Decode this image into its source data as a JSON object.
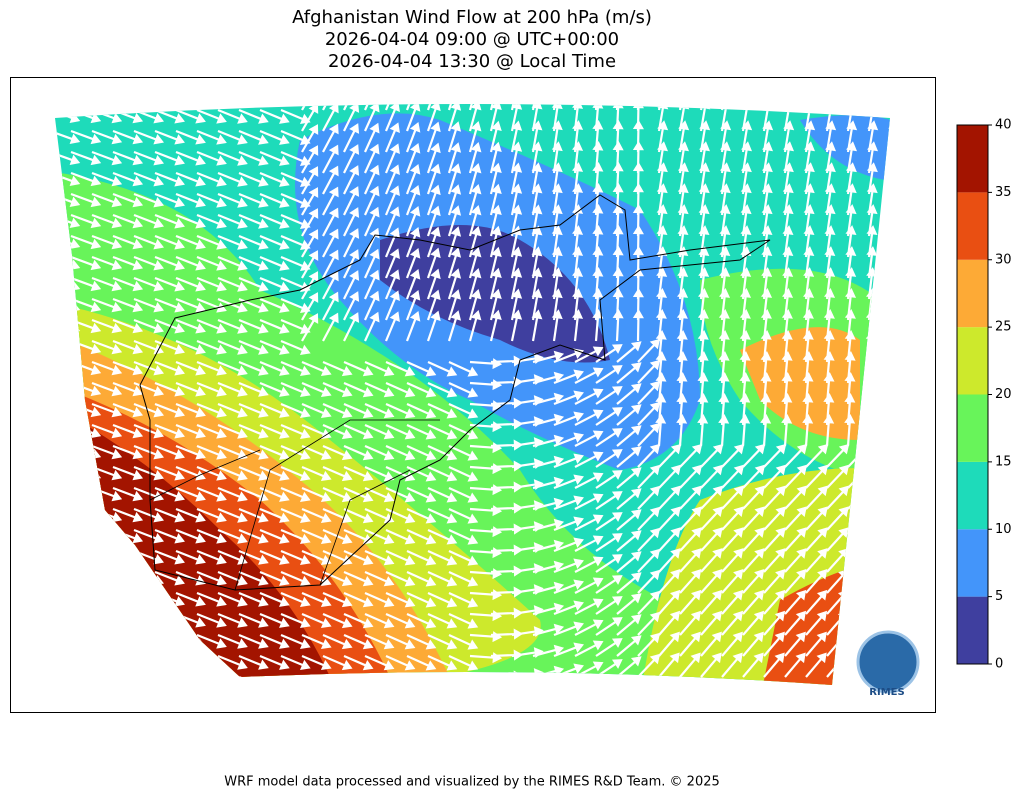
{
  "title": [
    "Afghanistan Wind Flow at 200 hPa (m/s)",
    "2026-04-04 09:00 @ UTC+00:00",
    "2026-04-04 13:30 @ Local Time"
  ],
  "colorbar": {
    "ticks": [
      0,
      5,
      10,
      15,
      20,
      25,
      30,
      35,
      40
    ],
    "colors": [
      "#3f3f9f",
      "#4395fa",
      "#1edbba",
      "#68f45a",
      "#cde92c",
      "#fdaa36",
      "#e94f12",
      "#a31400"
    ]
  },
  "logo": "RIMES",
  "footer": "WRF model data processed and visualized by the RIMES R&D Team. © 2025"
}
